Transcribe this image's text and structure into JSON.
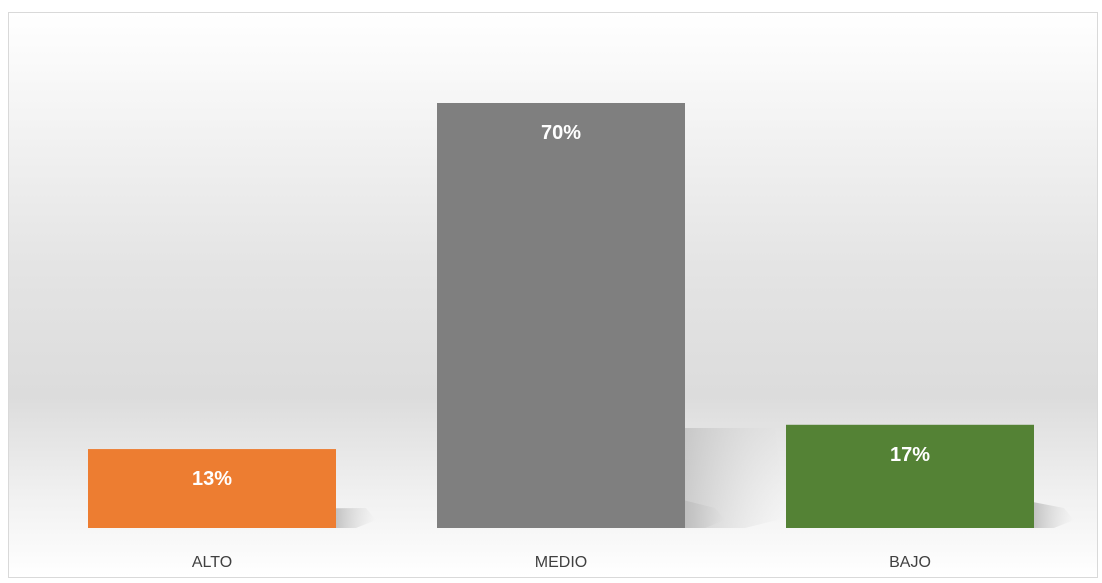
{
  "chart_data": {
    "type": "bar",
    "title": "",
    "xlabel": "",
    "ylabel": "",
    "categories": [
      "ALTO",
      "MEDIO",
      "BAJO"
    ],
    "values": [
      13,
      70,
      17
    ],
    "data_labels": [
      "13%",
      "70%",
      "17%"
    ],
    "colors": [
      "#ED7D31",
      "#7F7F7F",
      "#548235"
    ],
    "ylim": [
      0,
      70
    ],
    "grid": false,
    "legend": "none"
  }
}
